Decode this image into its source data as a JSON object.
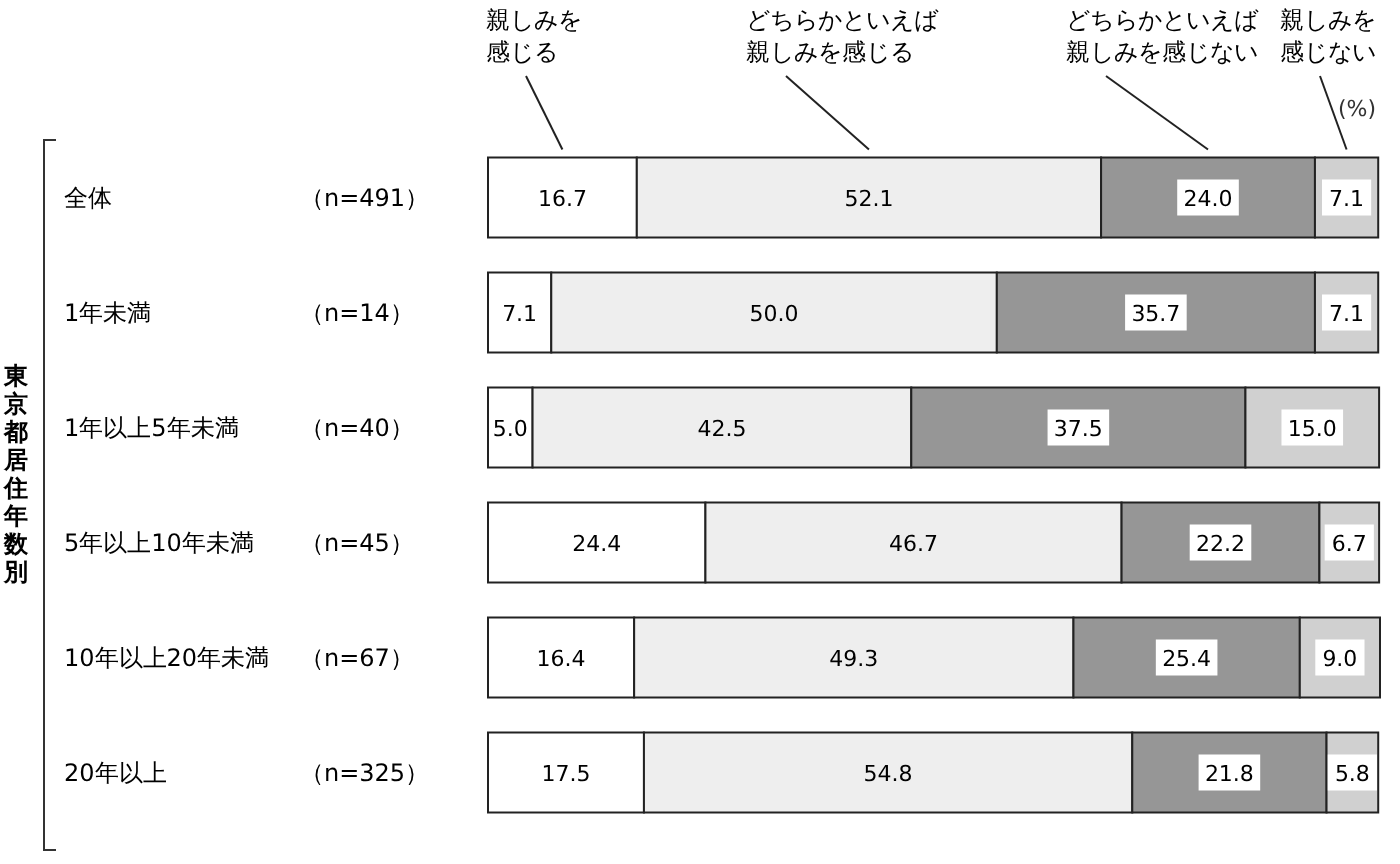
{
  "chart_data": {
    "type": "bar",
    "orientation": "horizontal",
    "stacked": true,
    "annotations": [
      "東京都居住年数別",
      "(%)"
    ],
    "categories": [
      "全体（n=491）",
      "1年未満（n=14）",
      "1年以上5年未満（n=40）",
      "5年以上10年未満（n=45）",
      "10年以上20年未満（n=67）",
      "20年以上（n=325）"
    ],
    "series": [
      {
        "name": "親しみを感じる",
        "color": "#ffffff",
        "values": [
          16.7,
          7.1,
          5.0,
          24.4,
          16.4,
          17.5
        ],
        "value_labels": [
          "16.7",
          "7.1",
          "5.0",
          "24.4",
          "16.4",
          "17.5"
        ]
      },
      {
        "name": "どちらかといえば親しみを感じる",
        "color": "#eeeeee",
        "values": [
          52.1,
          50.0,
          42.5,
          46.7,
          49.3,
          54.8
        ],
        "value_labels": [
          "52.1",
          "50.0",
          "42.5",
          "46.7",
          "49.3",
          "54.8"
        ]
      },
      {
        "name": "どちらかといえば親しみを感じない",
        "color": "#969696",
        "values": [
          24.0,
          35.7,
          37.5,
          22.2,
          25.4,
          21.8
        ],
        "value_labels": [
          "24.0",
          "35.7",
          "37.5",
          "22.2",
          "25.4",
          "21.8"
        ]
      },
      {
        "name": "親しみを感じない",
        "color": "#d0d0d0",
        "values": [
          7.1,
          7.1,
          15.0,
          6.7,
          9.0,
          5.8
        ],
        "value_labels": [
          "7.1",
          "7.1",
          "15.0",
          "6.7",
          "9.0",
          "5.8"
        ]
      }
    ]
  }
}
